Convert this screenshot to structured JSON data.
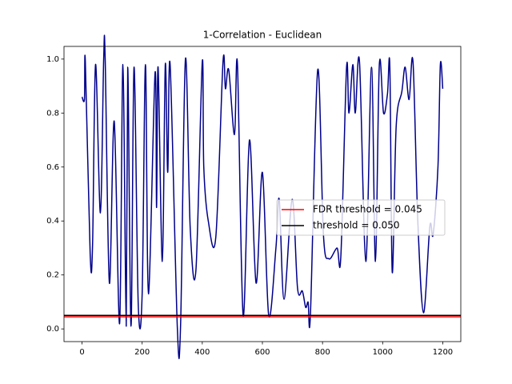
{
  "chart_data": {
    "type": "line",
    "title": "1-Correlation - Euclidean",
    "x": [
      0,
      8,
      11,
      27,
      35,
      45,
      61,
      72,
      77,
      91,
      107,
      125,
      136,
      147,
      152,
      163,
      173,
      187,
      200,
      211,
      221,
      243,
      248,
      253,
      267,
      277,
      285,
      293,
      317,
      328,
      344,
      360,
      379,
      400,
      405,
      420,
      445,
      469,
      477,
      488,
      507,
      517,
      536,
      557,
      579,
      600,
      621,
      645,
      656,
      672,
      699,
      717,
      733,
      744,
      752,
      760,
      784,
      803,
      821,
      848,
      861,
      880,
      888,
      901,
      909,
      923,
      944,
      963,
      976,
      989,
      1003,
      1016,
      1024,
      1032,
      1045,
      1064,
      1075,
      1088,
      1101,
      1117,
      1136,
      1157,
      1168,
      1184,
      1192,
      1200
    ],
    "series": [
      {
        "color": "#00008b",
        "values": [
          0.86,
          0.85,
          0.99,
          0.28,
          0.31,
          0.98,
          0.43,
          1.0,
          1.0,
          0.17,
          0.77,
          0.02,
          0.98,
          0.01,
          0.97,
          0.01,
          0.97,
          0.09,
          0.13,
          0.98,
          0.13,
          0.95,
          0.45,
          0.97,
          0.25,
          0.98,
          0.58,
          0.98,
          0.005,
          0.02,
          1.0,
          0.37,
          0.22,
          0.99,
          0.6,
          0.4,
          0.34,
          0.99,
          0.89,
          0.96,
          0.72,
          0.98,
          0.05,
          0.7,
          0.17,
          0.58,
          0.05,
          0.3,
          0.48,
          0.11,
          0.48,
          0.15,
          0.14,
          0.08,
          0.1,
          0.06,
          0.96,
          0.35,
          0.26,
          0.3,
          0.27,
          0.97,
          0.8,
          0.98,
          0.8,
          0.99,
          0.25,
          0.97,
          0.25,
          0.98,
          0.8,
          0.87,
          0.97,
          0.21,
          0.75,
          0.88,
          0.97,
          0.85,
          0.99,
          0.4,
          0.06,
          0.38,
          0.35,
          0.6,
          0.98,
          0.89
        ]
      }
    ],
    "hlines": [
      {
        "name": "FDR threshold = 0.045",
        "value": 0.045,
        "color": "#ff0000"
      },
      {
        "name": "threshold = 0.050",
        "value": 0.05,
        "color": "#000000"
      }
    ],
    "xlim": [
      -60,
      1260
    ],
    "xticks": [
      0,
      200,
      400,
      600,
      800,
      1000,
      1200
    ],
    "ylim": [
      -0.047,
      1.047
    ],
    "yticks": [
      {
        "value": 0,
        "label": "0.0"
      },
      0.2,
      0.4,
      0.6,
      0.8,
      {
        "value": 1,
        "label": "1.0"
      }
    ],
    "grid": false,
    "legend": "center right"
  }
}
